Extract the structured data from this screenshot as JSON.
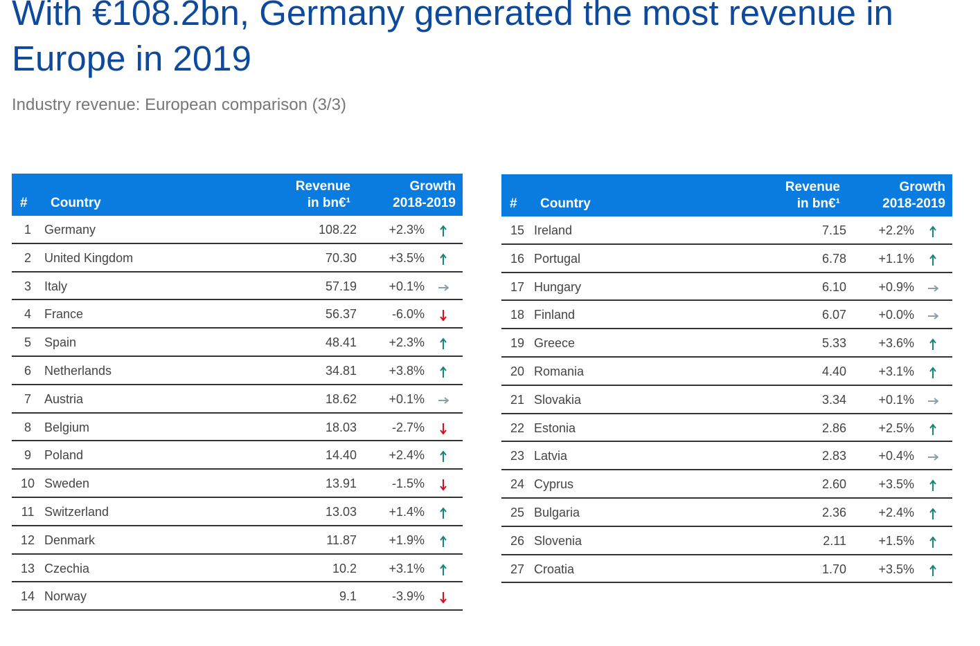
{
  "header": {
    "title": "With €108.2bn, Germany generated the most revenue in Europe in 2019",
    "subtitle": "Industry revenue: European comparison (3/3)"
  },
  "tables": [
    {
      "columns": [
        [
          "#"
        ],
        [
          "Country"
        ],
        [
          "Revenue",
          "in bn€¹"
        ],
        [
          "Growth",
          "2018-2019"
        ]
      ],
      "rows": [
        {
          "rank": 1,
          "country": "Germany",
          "revenue": "108.22",
          "growth": "+2.3%",
          "trend": "up"
        },
        {
          "rank": 2,
          "country": "United Kingdom",
          "revenue": "70.30",
          "growth": "+3.5%",
          "trend": "up"
        },
        {
          "rank": 3,
          "country": "Italy",
          "revenue": "57.19",
          "growth": "+0.1%",
          "trend": "flat"
        },
        {
          "rank": 4,
          "country": "France",
          "revenue": "56.37",
          "growth": "-6.0%",
          "trend": "down"
        },
        {
          "rank": 5,
          "country": "Spain",
          "revenue": "48.41",
          "growth": "+2.3%",
          "trend": "up"
        },
        {
          "rank": 6,
          "country": "Netherlands",
          "revenue": "34.81",
          "growth": "+3.8%",
          "trend": "up"
        },
        {
          "rank": 7,
          "country": "Austria",
          "revenue": "18.62",
          "growth": "+0.1%",
          "trend": "flat"
        },
        {
          "rank": 8,
          "country": "Belgium",
          "revenue": "18.03",
          "growth": "-2.7%",
          "trend": "down"
        },
        {
          "rank": 9,
          "country": "Poland",
          "revenue": "14.40",
          "growth": "+2.4%",
          "trend": "up"
        },
        {
          "rank": 10,
          "country": "Sweden",
          "revenue": "13.91",
          "growth": "-1.5%",
          "trend": "down"
        },
        {
          "rank": 11,
          "country": "Switzerland",
          "revenue": "13.03",
          "growth": "+1.4%",
          "trend": "up"
        },
        {
          "rank": 12,
          "country": "Denmark",
          "revenue": "11.87",
          "growth": "+1.9%",
          "trend": "up"
        },
        {
          "rank": 13,
          "country": "Czechia",
          "revenue": "10.2",
          "growth": "+3.1%",
          "trend": "up"
        },
        {
          "rank": 14,
          "country": "Norway",
          "revenue": "9.1",
          "growth": "-3.9%",
          "trend": "down"
        }
      ]
    },
    {
      "columns": [
        [
          "#"
        ],
        [
          "Country"
        ],
        [
          "Revenue",
          "in bn€¹"
        ],
        [
          "Growth",
          "2018-2019"
        ]
      ],
      "rows": [
        {
          "rank": 15,
          "country": "Ireland",
          "revenue": "7.15",
          "growth": "+2.2%",
          "trend": "up"
        },
        {
          "rank": 16,
          "country": "Portugal",
          "revenue": "6.78",
          "growth": "+1.1%",
          "trend": "up"
        },
        {
          "rank": 17,
          "country": "Hungary",
          "revenue": "6.10",
          "growth": "+0.9%",
          "trend": "flat"
        },
        {
          "rank": 18,
          "country": "Finland",
          "revenue": "6.07",
          "growth": "+0.0%",
          "trend": "flat"
        },
        {
          "rank": 19,
          "country": "Greece",
          "revenue": "5.33",
          "growth": "+3.6%",
          "trend": "up"
        },
        {
          "rank": 20,
          "country": "Romania",
          "revenue": "4.40",
          "growth": "+3.1%",
          "trend": "up"
        },
        {
          "rank": 21,
          "country": "Slovakia",
          "revenue": "3.34",
          "growth": "+0.1%",
          "trend": "flat"
        },
        {
          "rank": 22,
          "country": "Estonia",
          "revenue": "2.86",
          "growth": "+2.5%",
          "trend": "up"
        },
        {
          "rank": 23,
          "country": "Latvia",
          "revenue": "2.83",
          "growth": "+0.4%",
          "trend": "flat"
        },
        {
          "rank": 24,
          "country": "Cyprus",
          "revenue": "2.60",
          "growth": "+3.5%",
          "trend": "up"
        },
        {
          "rank": 25,
          "country": "Bulgaria",
          "revenue": "2.36",
          "growth": "+2.4%",
          "trend": "up"
        },
        {
          "rank": 26,
          "country": "Slovenia",
          "revenue": "2.11",
          "growth": "+1.5%",
          "trend": "up"
        },
        {
          "rank": 27,
          "country": "Croatia",
          "revenue": "1.70",
          "growth": "+3.5%",
          "trend": "up"
        }
      ]
    }
  ]
}
